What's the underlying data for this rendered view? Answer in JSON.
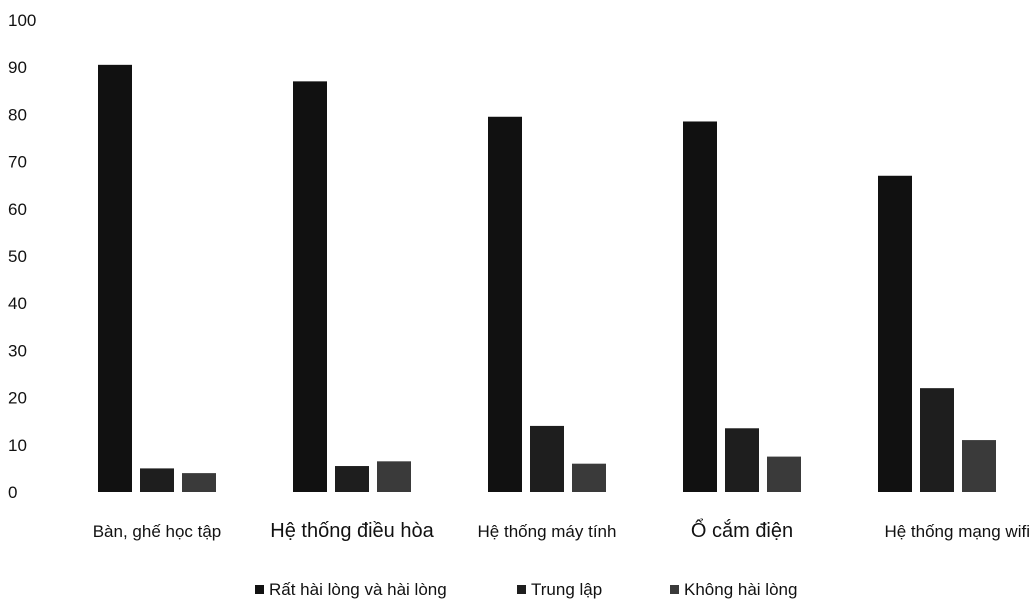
{
  "chart_data": {
    "type": "bar",
    "title": "",
    "xlabel": "",
    "ylabel": "",
    "ylim": [
      0,
      100
    ],
    "yticks": [
      0,
      10,
      20,
      30,
      40,
      50,
      60,
      70,
      80,
      90,
      100
    ],
    "grid": false,
    "legend_position": "bottom",
    "categories": [
      "Bàn, ghế học tập",
      "Hệ thống điều hòa",
      "Hệ thống máy tính",
      "Ổ cắm điện",
      "Hệ thống mạng wifi"
    ],
    "series": [
      {
        "name": "Rất hài lòng và hài lòng",
        "values": [
          90.5,
          87,
          79.5,
          78.5,
          67
        ],
        "color": "#111111"
      },
      {
        "name": "Trung lập",
        "values": [
          5,
          5.5,
          14,
          13.5,
          22
        ],
        "color": "#1e1e1e"
      },
      {
        "name": "Không hài lòng",
        "values": [
          4,
          6.5,
          6,
          7.5,
          11
        ],
        "color": "#3a3a3a"
      }
    ]
  }
}
